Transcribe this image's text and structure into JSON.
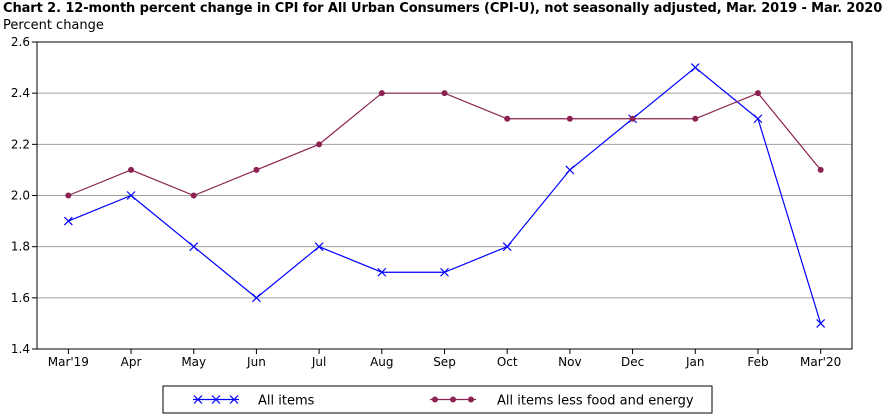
{
  "chart_data": {
    "type": "line",
    "title": "Chart 2. 12-month percent change in CPI for All Urban Consumers (CPI-U), not seasonally adjusted, Mar. 2019 - Mar. 2020",
    "ylabel": "Percent change",
    "xlabel": "",
    "ylim": [
      1.4,
      2.6
    ],
    "yticks": [
      "1.4",
      "1.6",
      "1.8",
      "2.0",
      "2.2",
      "2.4",
      "2.6"
    ],
    "categories": [
      "Mar'19",
      "Apr",
      "May",
      "Jun",
      "Jul",
      "Aug",
      "Sep",
      "Oct",
      "Nov",
      "Dec",
      "Jan",
      "Feb",
      "Mar'20"
    ],
    "grid": "horizontal",
    "legend_position": "bottom",
    "series": [
      {
        "name": "All items",
        "color": "#0000ff",
        "marker": "x",
        "values": [
          1.9,
          2.0,
          1.8,
          1.6,
          1.8,
          1.7,
          1.7,
          1.8,
          2.1,
          2.3,
          2.5,
          2.3,
          1.5
        ]
      },
      {
        "name": "All items less food and energy",
        "color": "#8b2252",
        "marker": "circle",
        "values": [
          2.0,
          2.1,
          2.0,
          2.1,
          2.2,
          2.4,
          2.4,
          2.3,
          2.3,
          2.3,
          2.3,
          2.4,
          2.1
        ]
      }
    ]
  }
}
